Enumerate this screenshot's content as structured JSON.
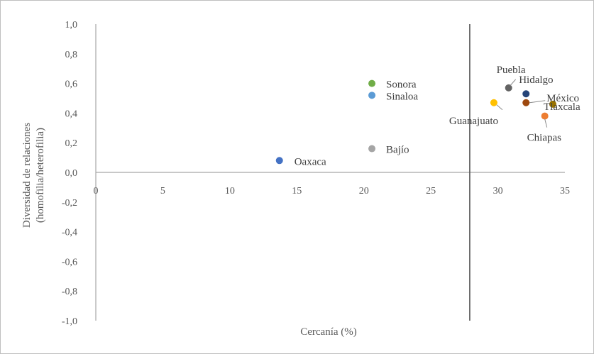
{
  "chart_data": {
    "type": "scatter",
    "title": "",
    "xlabel": "Cercanía (%)",
    "ylabel_lines": [
      "Diversidad de relaciones",
      "(homofilia/heterofilia)"
    ],
    "xlim": [
      0,
      35
    ],
    "ylim": [
      -1.0,
      1.0
    ],
    "x_ticks": [
      "0",
      "5",
      "10",
      "15",
      "20",
      "25",
      "30",
      "35"
    ],
    "y_ticks": [
      "1,0",
      "0,8",
      "0,6",
      "0,4",
      "0,2",
      "0,0",
      "-0,2",
      "-0,4",
      "-0,6",
      "-0,8",
      "-1,0"
    ],
    "reference_lines": {
      "x": 27.9,
      "y": 0.0
    },
    "grid": false,
    "legend": "none",
    "points": [
      {
        "label": "Sonora",
        "x": 20.6,
        "y": 0.6,
        "color": "#70ad47"
      },
      {
        "label": "Sinaloa",
        "x": 20.6,
        "y": 0.52,
        "color": "#5b9bd5"
      },
      {
        "label": "Bajío",
        "x": 20.6,
        "y": 0.16,
        "color": "#a5a5a5"
      },
      {
        "label": "Oaxaca",
        "x": 13.7,
        "y": 0.08,
        "color": "#4472c4"
      },
      {
        "label": "Puebla",
        "x": 30.8,
        "y": 0.57,
        "color": "#636363"
      },
      {
        "label": "Hidalgo",
        "x": 32.1,
        "y": 0.53,
        "color": "#264478"
      },
      {
        "label": "México",
        "x": 32.1,
        "y": 0.47,
        "color": "#9e480e"
      },
      {
        "label": "Guanajuato",
        "x": 29.7,
        "y": 0.47,
        "color": "#ffc000"
      },
      {
        "label": "Tlaxcala",
        "x": 34.1,
        "y": 0.46,
        "color": "#997300"
      },
      {
        "label": "Chiapas",
        "x": 33.5,
        "y": 0.38,
        "color": "#ed7d31"
      }
    ]
  }
}
